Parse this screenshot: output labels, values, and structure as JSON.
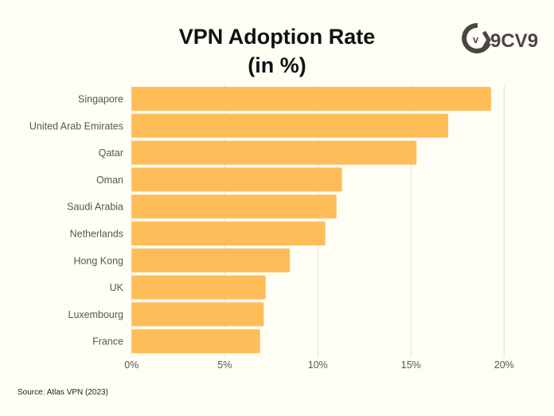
{
  "title_line1": "VPN Adoption Rate",
  "title_line2": "(in %)",
  "source": "Source: Atlas VPN (2023)",
  "logo_text": "9CV9",
  "colors": {
    "bar": "#ffbd59",
    "background": "#fffef5",
    "grid": "#e3e3d8"
  },
  "chart_data": {
    "type": "bar",
    "orientation": "horizontal",
    "title": "VPN Adoption Rate (in %)",
    "categories": [
      "Singapore",
      "United Arab Emirates",
      "Qatar",
      "Oman",
      "Saudi Arabia",
      "Netherlands",
      "Hong Kong",
      "UK",
      "Luxembourg",
      "France"
    ],
    "values": [
      19.3,
      17.0,
      15.3,
      11.3,
      11.0,
      10.4,
      8.5,
      7.2,
      7.1,
      6.9
    ],
    "xlim": [
      0,
      20
    ],
    "xticks": [
      0,
      5,
      10,
      15,
      20
    ],
    "xtick_labels": [
      "0%",
      "5%",
      "10%",
      "15%",
      "20%"
    ],
    "grid": "vertical",
    "xlabel": "",
    "ylabel": ""
  }
}
